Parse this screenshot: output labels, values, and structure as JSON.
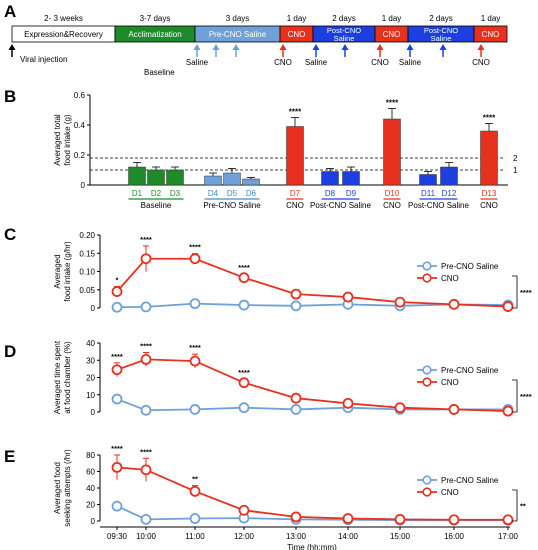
{
  "panels": [
    "A",
    "B",
    "C",
    "D",
    "E"
  ],
  "timeline": {
    "segments": [
      {
        "label": "Expression&Recovery",
        "duration": "2- 3 weeks",
        "color": "#ffffff",
        "text_color": "#000000"
      },
      {
        "label": "Acclimatization",
        "duration": "3-7 days",
        "color": "#1f8a2a",
        "text_color": "#ffffff"
      },
      {
        "label": "Pre-CNO Saline",
        "duration": "3 days",
        "color": "#6fa0d8",
        "text_color": "#ffffff"
      },
      {
        "label": "CNO",
        "duration": "1 day",
        "color": "#e8301e",
        "text_color": "#ffffff"
      },
      {
        "label": "Post-CNO Saline",
        "duration": "2 days",
        "color": "#1e3fe0",
        "text_color": "#ffffff"
      },
      {
        "label": "CNO",
        "duration": "1 day",
        "color": "#e8301e",
        "text_color": "#ffffff"
      },
      {
        "label": "Post-CNO Saline",
        "duration": "2 days",
        "color": "#1e3fe0",
        "text_color": "#ffffff"
      },
      {
        "label": "CNO",
        "duration": "1 day",
        "color": "#e8301e",
        "text_color": "#ffffff"
      }
    ],
    "viral_label": "Viral injection",
    "baseline_label": "Baseline",
    "arrow_labels": [
      "Saline",
      "Saline",
      "CNO",
      "Saline",
      "CNO",
      "Saline",
      "CNO"
    ]
  },
  "chart_data": [
    {
      "type": "bar",
      "panel": "B",
      "ylabel_lines": [
        "Averaged total",
        "food intake (g)"
      ],
      "ylim": [
        0,
        0.6
      ],
      "yticks": [
        "0",
        "0.2",
        "0.4",
        "0.6"
      ],
      "categories": [
        "D1",
        "D2",
        "D3",
        "D4",
        "D5",
        "D6",
        "D7",
        "D8",
        "D9",
        "D10",
        "D11",
        "D12",
        "D13"
      ],
      "values": [
        0.12,
        0.1,
        0.1,
        0.06,
        0.08,
        0.04,
        0.39,
        0.09,
        0.09,
        0.44,
        0.07,
        0.12,
        0.36
      ],
      "errors": [
        0.03,
        0.02,
        0.02,
        0.02,
        0.03,
        0.01,
        0.06,
        0.02,
        0.03,
        0.07,
        0.02,
        0.03,
        0.05
      ],
      "colors": [
        "#1f8a2a",
        "#1f8a2a",
        "#1f8a2a",
        "#6fa0d8",
        "#6fa0d8",
        "#6fa0d8",
        "#e8301e",
        "#1e3fe0",
        "#1e3fe0",
        "#e8301e",
        "#1e3fe0",
        "#1e3fe0",
        "#e8301e"
      ],
      "label_colors": [
        "#1f8a2a",
        "#1f8a2a",
        "#1f8a2a",
        "#3a8fc8",
        "#3a8fc8",
        "#3a8fc8",
        "#e8301e",
        "#1e3fe0",
        "#1e3fe0",
        "#e8301e",
        "#1e3fe0",
        "#1e3fe0",
        "#e8301e"
      ],
      "significance": [
        "",
        "",
        "",
        "",
        "",
        "",
        "****",
        "",
        "",
        "****",
        "",
        "",
        "****"
      ],
      "reference_lines": [
        {
          "label": "1",
          "value": 0.1
        },
        {
          "label": "2",
          "value": 0.18
        }
      ],
      "group_labels": [
        {
          "label": "Baseline",
          "from": 0,
          "to": 2,
          "color": "#1f8a2a"
        },
        {
          "label": "Pre-CNO Saline",
          "from": 3,
          "to": 5,
          "color": "#3a8fc8"
        },
        {
          "label": "CNO",
          "from": 6,
          "to": 6,
          "color": "#e8301e"
        },
        {
          "label": "Post-CNO Saline",
          "from": 7,
          "to": 8,
          "color": "#1e3fe0"
        },
        {
          "label": "CNO",
          "from": 9,
          "to": 9,
          "color": "#e8301e"
        },
        {
          "label": "Post-CNO Saline",
          "from": 10,
          "to": 11,
          "color": "#1e3fe0"
        },
        {
          "label": "CNO",
          "from": 12,
          "to": 12,
          "color": "#e8301e"
        }
      ]
    },
    {
      "type": "line",
      "panel": "C",
      "ylabel_lines": [
        "Averaged",
        "food intake (g/hr)"
      ],
      "ylim": [
        0,
        0.2
      ],
      "yticks": [
        "0",
        "0.05",
        "0.10",
        "0.15",
        "0.20"
      ],
      "x": [
        "09:30",
        "10:00",
        "11:00",
        "12:00",
        "13:00",
        "14:00",
        "15:00",
        "16:00",
        "17:00"
      ],
      "series": [
        {
          "name": "Pre-CNO Saline",
          "color": "#6fa0d8",
          "values": [
            0.002,
            0.003,
            0.012,
            0.008,
            0.006,
            0.01,
            0.006,
            0.01,
            0.008
          ],
          "errors": [
            0.004,
            0.004,
            0.005,
            0.004,
            0.003,
            0.004,
            0.003,
            0.003,
            0.003
          ]
        },
        {
          "name": "CNO",
          "color": "#e8301e",
          "values": [
            0.045,
            0.135,
            0.135,
            0.083,
            0.038,
            0.03,
            0.016,
            0.01,
            0.004
          ],
          "errors": [
            0.014,
            0.035,
            0.014,
            0.01,
            0.005,
            0.005,
            0.004,
            0.003,
            0.003
          ]
        }
      ],
      "point_significance": [
        "*",
        "****",
        "****",
        "****",
        "",
        "",
        "",
        "",
        ""
      ],
      "overall_significance": "****"
    },
    {
      "type": "line",
      "panel": "D",
      "ylabel_lines": [
        "Averaged time spent",
        "at food chamber (%)"
      ],
      "ylim": [
        0,
        40
      ],
      "yticks": [
        "0",
        "10",
        "20",
        "30",
        "40"
      ],
      "x": [
        "09:30",
        "10:00",
        "11:00",
        "12:00",
        "13:00",
        "14:00",
        "15:00",
        "16:00",
        "17:00"
      ],
      "series": [
        {
          "name": "Pre-CNO Saline",
          "color": "#6fa0d8",
          "values": [
            7.5,
            1,
            1.5,
            2.5,
            1.5,
            2.5,
            1.5,
            1.5,
            1.5
          ],
          "errors": [
            2,
            0.6,
            0.6,
            0.8,
            0.6,
            0.6,
            0.6,
            0.6,
            0.6
          ]
        },
        {
          "name": "CNO",
          "color": "#e8301e",
          "values": [
            24.5,
            30.5,
            29.5,
            17,
            8,
            5,
            2.5,
            1.5,
            0.5
          ],
          "errors": [
            4,
            4,
            4,
            2,
            1,
            1,
            0.8,
            0.6,
            0.5
          ]
        }
      ],
      "point_significance": [
        "****",
        "****",
        "****",
        "****",
        "",
        "",
        "",
        "",
        ""
      ],
      "overall_significance": "****"
    },
    {
      "type": "line",
      "panel": "E",
      "ylabel_lines": [
        "Averaged food",
        "seeking attempts (/hr)"
      ],
      "ylim": [
        0,
        80
      ],
      "yticks": [
        "0",
        "20",
        "40",
        "60",
        "80"
      ],
      "x": [
        "09:30",
        "10:00",
        "11:00",
        "12:00",
        "13:00",
        "14:00",
        "15:00",
        "16:00",
        "17:00"
      ],
      "xlabel": "Time (hh:mm)",
      "series": [
        {
          "name": "Pre-CNO Saline",
          "color": "#6fa0d8",
          "values": [
            18,
            2,
            3,
            3.5,
            2,
            1.5,
            1,
            1,
            1
          ],
          "errors": [
            3,
            1,
            1,
            1,
            0.8,
            0.6,
            0.5,
            0.5,
            0.5
          ]
        },
        {
          "name": "CNO",
          "color": "#e8301e",
          "values": [
            65,
            62,
            36,
            13,
            5,
            3,
            2,
            1.5,
            1.5
          ],
          "errors": [
            15,
            14,
            7,
            3,
            1.5,
            1,
            0.8,
            0.6,
            0.6
          ]
        }
      ],
      "point_significance": [
        "****",
        "****",
        "**",
        "",
        "",
        "",
        "",
        "",
        ""
      ],
      "overall_significance": "**"
    }
  ]
}
